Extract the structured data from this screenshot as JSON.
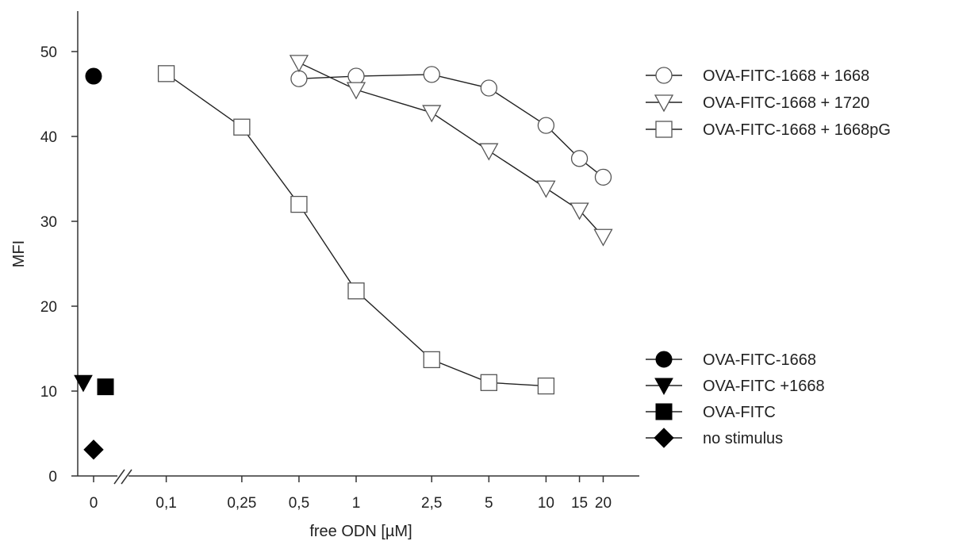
{
  "chart_data": {
    "type": "line",
    "xlabel": "free ODN [µM]",
    "ylabel": "MFI",
    "ylim": [
      0,
      55
    ],
    "y_ticks": [
      0,
      10,
      20,
      30,
      40,
      50
    ],
    "x_ticks": [
      "0",
      "0,1",
      "0,25",
      "0,5",
      "1",
      "2,5",
      "5",
      "10",
      "15",
      "20"
    ],
    "x_scale": "log (with axis break between 0 and 0,1)",
    "grid": false,
    "series": [
      {
        "name": "OVA-FITC-1668 + 1668",
        "marker": "circle-open",
        "x": [
          0.5,
          1,
          2.5,
          5,
          10,
          15,
          20
        ],
        "y": [
          46.8,
          47.1,
          47.3,
          45.7,
          41.3,
          37.4,
          35.2
        ]
      },
      {
        "name": "OVA-FITC-1668 + 1720",
        "marker": "triangle-down-open",
        "x": [
          0.5,
          1,
          2.5,
          5,
          10,
          15,
          20
        ],
        "y": [
          48.7,
          45.5,
          42.8,
          38.3,
          33.9,
          31.3,
          28.2
        ]
      },
      {
        "name": "OVA-FITC-1668 + 1668pG",
        "marker": "square-open",
        "x": [
          0.1,
          0.25,
          0.5,
          1,
          2.5,
          5,
          10
        ],
        "y": [
          47.4,
          41.1,
          32.0,
          21.8,
          13.7,
          11.0,
          10.6
        ]
      }
    ],
    "controls": [
      {
        "name": "OVA-FITC-1668",
        "marker": "circle-solid",
        "x": "0",
        "y": 47.1
      },
      {
        "name": "OVA-FITC +1668",
        "marker": "triangle-down-solid",
        "x": "0",
        "y": 11.0
      },
      {
        "name": "OVA-FITC",
        "marker": "square-solid",
        "x": "0",
        "y": 10.5
      },
      {
        "name": "no stimulus",
        "marker": "diamond-solid",
        "x": "0",
        "y": 3.1
      }
    ],
    "legend_placement": [
      "right-top",
      "right-bottom"
    ]
  }
}
